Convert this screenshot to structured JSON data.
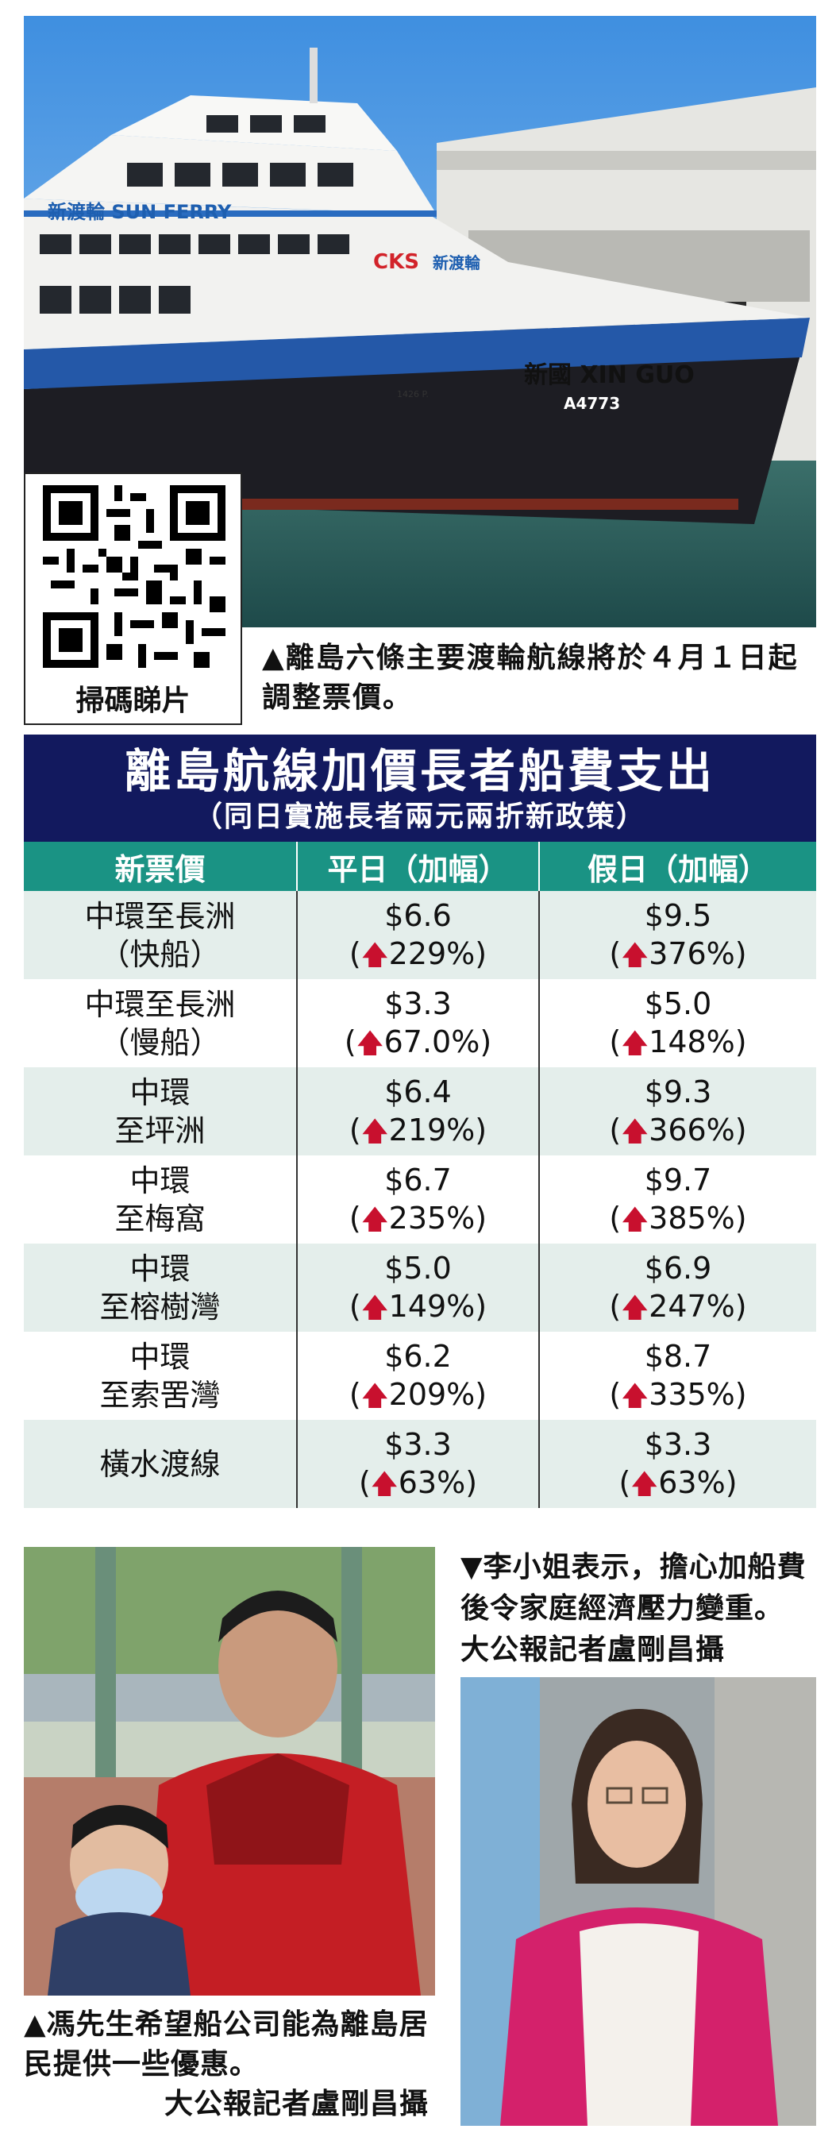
{
  "ferry_photo": {
    "ship_brand": "新渡輪 SUN FERRY",
    "ship_logo": "CKS",
    "ship_logo_text": "新渡輪",
    "ship_name": "新國 XIN GUO",
    "ship_reg": "A4773",
    "ship_capacity": "1426 P.",
    "caption": "▲離島六條主要渡輪航線將於４月１日起調整票價。"
  },
  "qr": {
    "label": "掃碼睇片",
    "icon": "qr-code-icon"
  },
  "table": {
    "title": "離島航線加價長者船費支出",
    "subtitle": "（同日實施長者兩元兩折新政策）",
    "headers": [
      "新票價",
      "平日（加幅）",
      "假日（加幅）"
    ],
    "arrow_icon": "up-arrow-icon",
    "arrow_color": "#c8102e",
    "rows": [
      {
        "route_line1": "中環至長洲",
        "route_line2": "（快船）",
        "weekday": "$6.6",
        "weekday_pct": "229%)",
        "holiday": "$9.5",
        "holiday_pct": "376%)"
      },
      {
        "route_line1": "中環至長洲",
        "route_line2": "（慢船）",
        "weekday": "$3.3",
        "weekday_pct": "67.0%)",
        "holiday": "$5.0",
        "holiday_pct": "148%)"
      },
      {
        "route_line1": "中環",
        "route_line2": "至坪洲",
        "weekday": "$6.4",
        "weekday_pct": "219%)",
        "holiday": "$9.3",
        "holiday_pct": "366%)"
      },
      {
        "route_line1": "中環",
        "route_line2": "至梅窩",
        "weekday": "$6.7",
        "weekday_pct": "235%)",
        "holiday": "$9.7",
        "holiday_pct": "385%)"
      },
      {
        "route_line1": "中環",
        "route_line2": "至榕樹灣",
        "weekday": "$5.0",
        "weekday_pct": "149%)",
        "holiday": "$6.9",
        "holiday_pct": "247%)"
      },
      {
        "route_line1": "中環",
        "route_line2": "至索罟灣",
        "weekday": "$6.2",
        "weekday_pct": "209%)",
        "holiday": "$8.7",
        "holiday_pct": "335%)"
      },
      {
        "route_line1": "橫水渡線",
        "route_line2": "",
        "weekday": "$3.3",
        "weekday_pct": "63%)",
        "holiday": "$3.3",
        "holiday_pct": "63%)"
      }
    ],
    "colors": {
      "header_bg": "#12195e",
      "col_head_bg": "#1a9384",
      "stripe_bg": "#e4eeeb"
    }
  },
  "bottom": {
    "caption_left_1": "▲馮先生希望船公司能為離島居民提供一些優惠。",
    "caption_left_credit": "大公報記者盧剛昌攝",
    "caption_right": "▼李小姐表示，擔心加船費後令家庭經濟壓力變重。 大公報記者盧剛昌攝"
  }
}
